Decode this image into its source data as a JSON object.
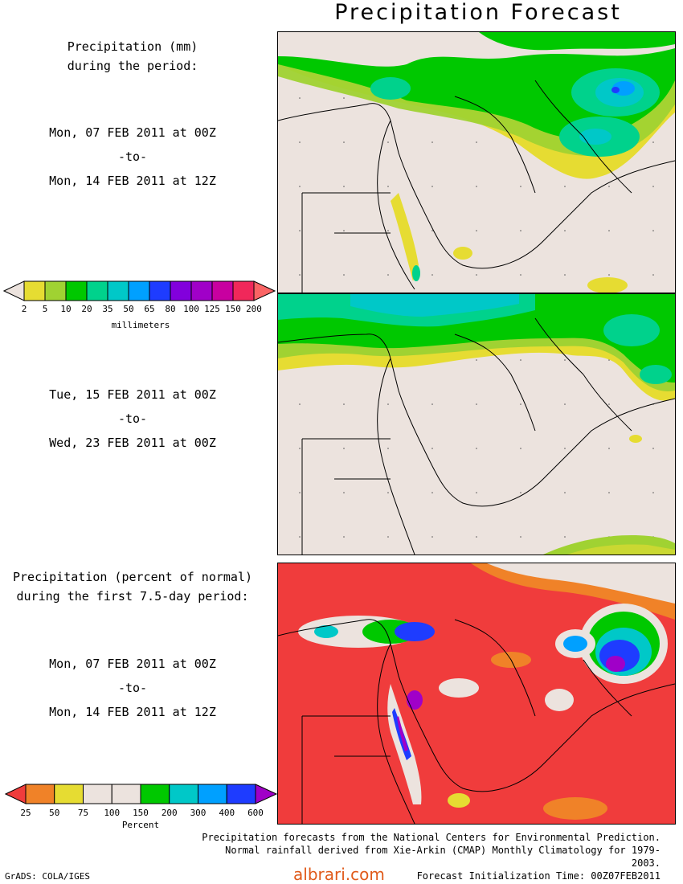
{
  "title": "Precipitation Forecast",
  "panel1_label": {
    "line1": "Precipitation (mm)",
    "line2": "during the period:",
    "start": "Mon, 07 FEB 2011 at 00Z",
    "to": "-to-",
    "end": "Mon, 14 FEB 2011 at 12Z"
  },
  "panel2_label": {
    "start": "Tue, 15 FEB 2011 at 00Z",
    "to": "-to-",
    "end": "Wed, 23 FEB 2011 at 00Z"
  },
  "panel3_label": {
    "line1": "Precipitation (percent of normal)",
    "line2": "during the first 7.5-day period:",
    "start": "Mon, 07 FEB 2011 at 00Z",
    "to": "-to-",
    "end": "Mon, 14 FEB 2011 at 12Z"
  },
  "colorbar_mm": {
    "unit": "millimeters",
    "ticks": [
      "2",
      "5",
      "10",
      "20",
      "35",
      "50",
      "65",
      "80",
      "100",
      "125",
      "150",
      "200"
    ],
    "colors": [
      "#e6dc32",
      "#a0d232",
      "#00c800",
      "#00d28c",
      "#00c8c8",
      "#00a0ff",
      "#1e3cff",
      "#8200dc",
      "#a000c8",
      "#c800a0",
      "#f0285a",
      "#fa6464"
    ]
  },
  "colorbar_pct": {
    "unit": "Percent",
    "ticks": [
      "25",
      "50",
      "75",
      "100",
      "150",
      "200",
      "300",
      "400",
      "600"
    ],
    "colors": [
      "#f03c3c",
      "#f08228",
      "#e6dc32",
      "#ece3de",
      "#ece3de",
      "#00c800",
      "#00c8c8",
      "#00a0ff",
      "#1e3cff",
      "#a000c8"
    ]
  },
  "footnote": {
    "line1": "Precipitation forecasts from the National Centers for Environmental Prediction.",
    "line2": "Normal rainfall derived from Xie-Arkin (CMAP) Monthly Climatology for 1979-2003.",
    "line3": "Forecast Initialization Time: 00Z07FEB2011"
  },
  "credit": "GrADS: COLA/IGES",
  "watermark": "albrari.com"
}
